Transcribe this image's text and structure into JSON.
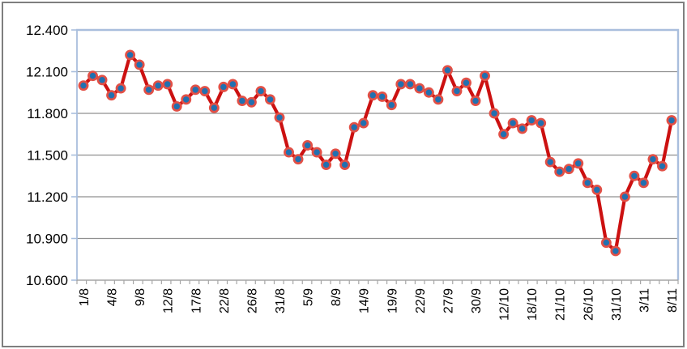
{
  "chart_data": {
    "type": "line",
    "title": "",
    "legend": "none",
    "grid": "horizontal gridlines every 0.300",
    "ylim": [
      10.6,
      12.4
    ],
    "y_tick_labels": [
      "12.400",
      "12.100",
      "11.800",
      "11.500",
      "11.200",
      "10.900",
      "10.600"
    ],
    "y_tick_values": [
      12.4,
      12.1,
      11.8,
      11.5,
      11.2,
      10.9,
      10.6
    ],
    "x_tick_labels": [
      "1/8",
      "4/8",
      "9/8",
      "12/8",
      "17/8",
      "22/8",
      "26/8",
      "31/8",
      "5/9",
      "8/9",
      "14/9",
      "19/9",
      "22/9",
      "27/9",
      "30/9",
      "12/10",
      "18/10",
      "21/10",
      "26/10",
      "31/10",
      "3/11",
      "8/11"
    ],
    "x_tick_every": 3,
    "values": [
      12.0,
      12.07,
      12.04,
      11.93,
      11.98,
      12.22,
      12.15,
      11.97,
      12.0,
      12.01,
      11.85,
      11.9,
      11.97,
      11.96,
      11.84,
      11.99,
      12.01,
      11.89,
      11.88,
      11.96,
      11.9,
      11.77,
      11.52,
      11.47,
      11.57,
      11.52,
      11.43,
      11.51,
      11.43,
      11.7,
      11.73,
      11.93,
      11.92,
      11.86,
      12.01,
      12.01,
      11.98,
      11.95,
      11.9,
      12.11,
      11.96,
      12.02,
      11.89,
      12.07,
      11.8,
      11.65,
      11.73,
      11.69,
      11.75,
      11.73,
      11.45,
      11.38,
      11.4,
      11.44,
      11.3,
      11.25,
      10.87,
      10.81,
      11.2,
      11.35,
      11.3,
      11.47,
      11.42,
      11.75
    ]
  },
  "styles": {
    "line_color": "#CC1111",
    "marker_fill": "#2170B0",
    "marker_ring": "#E25046",
    "grid_color": "#909090",
    "plot_border_color": "#A9BEDD",
    "axis_line_color": "#A6A6A6",
    "outer_border_color": "#7F7F7F",
    "text_color": "#000000",
    "background": "#FFFFFF"
  }
}
